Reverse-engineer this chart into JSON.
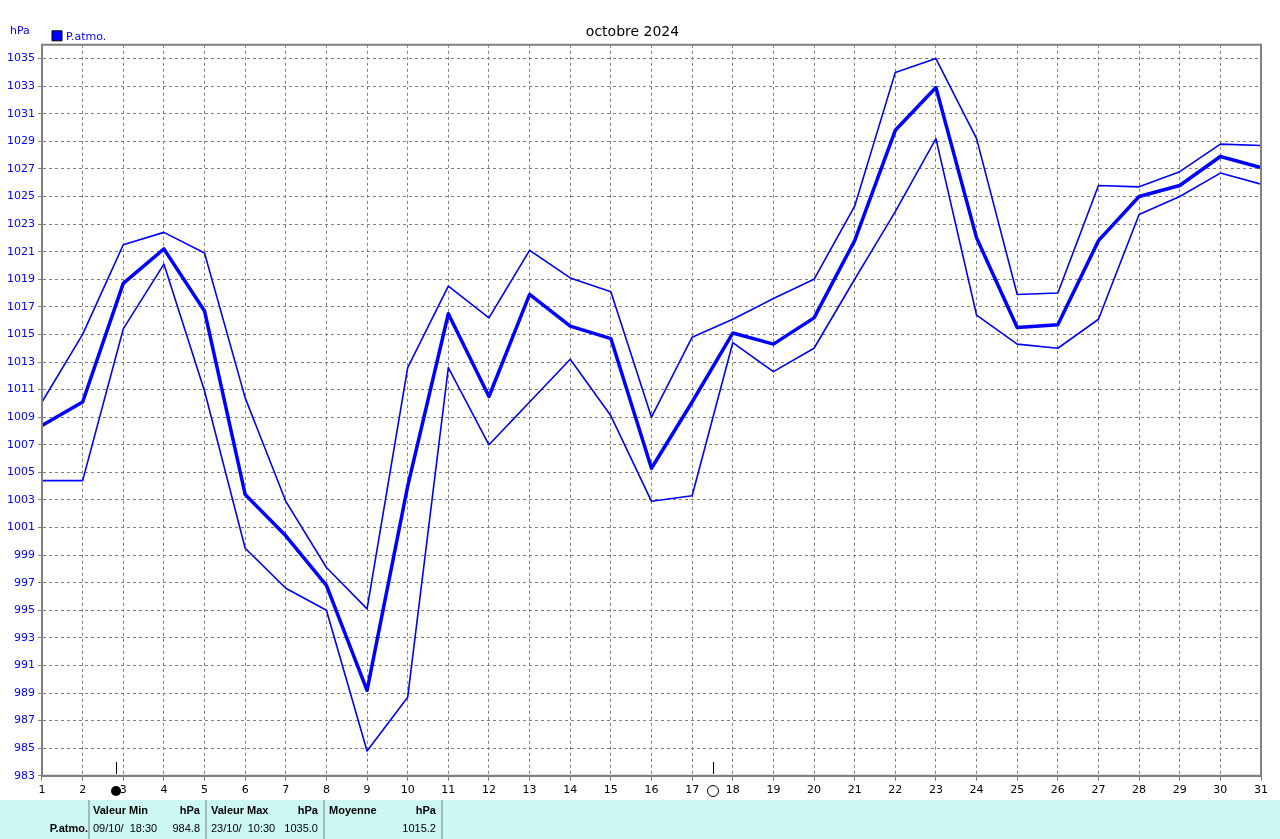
{
  "chart_data": {
    "type": "line",
    "title": "octobre 2024",
    "ylabel": "hPa",
    "x": [
      1,
      2,
      3,
      4,
      5,
      6,
      7,
      8,
      9,
      10,
      11,
      12,
      13,
      14,
      15,
      16,
      17,
      18,
      19,
      20,
      21,
      22,
      23,
      24,
      25,
      26,
      27,
      28,
      29,
      30,
      31
    ],
    "series": [
      {
        "color": "#0000ff",
        "values": [
          1010.1,
          1015.0,
          1021.5,
          1022.4,
          1020.9,
          1010.4,
          1002.9,
          998.1,
          995.1,
          1012.6,
          1018.5,
          1016.2,
          1021.1,
          1019.1,
          1018.1,
          1009.0,
          1014.8,
          1016.1,
          1017.6,
          1019.0,
          1024.3,
          1034.0,
          1035.0,
          1029.2,
          1017.9,
          1018.0,
          1025.8,
          1025.7,
          1026.8,
          1028.8,
          1028.7
        ]
      },
      {
        "name": "P.atmo.",
        "color": "#0000ff",
        "values": [
          1008.4,
          1010.1,
          1018.7,
          1021.2,
          1016.7,
          1003.4,
          1000.4,
          996.8,
          989.2,
          1004.0,
          1016.5,
          1010.5,
          1017.9,
          1015.6,
          1014.7,
          1005.3,
          1010.1,
          1015.1,
          1014.3,
          1016.2,
          1021.8,
          1029.8,
          1032.9,
          1022.0,
          1015.5,
          1015.7,
          1021.8,
          1025.0,
          1025.8,
          1027.9,
          1027.1
        ]
      },
      {
        "color": "#0000ff",
        "values": [
          1004.4,
          1004.4,
          1015.4,
          1020.1,
          1010.9,
          999.5,
          996.6,
          995.0,
          984.8,
          988.7,
          1012.6,
          1007.0,
          1010.1,
          1013.2,
          1009.1,
          1002.9,
          1003.3,
          1014.4,
          1012.3,
          1014.0,
          1019.0,
          1023.9,
          1029.2,
          1016.4,
          1014.3,
          1014.0,
          1016.1,
          1023.7,
          1025.0,
          1026.7,
          1025.9
        ]
      }
    ],
    "xlim": [
      1,
      31
    ],
    "xticks": [
      1,
      2,
      3,
      4,
      5,
      6,
      7,
      8,
      9,
      10,
      11,
      12,
      13,
      14,
      15,
      16,
      17,
      18,
      19,
      20,
      21,
      22,
      23,
      24,
      25,
      26,
      27,
      28,
      29,
      30,
      31
    ],
    "ylim": [
      983,
      1036
    ],
    "yticks": [
      983,
      985,
      987,
      989,
      991,
      993,
      995,
      997,
      999,
      1001,
      1003,
      1005,
      1007,
      1009,
      1011,
      1013,
      1015,
      1017,
      1019,
      1021,
      1023,
      1025,
      1027,
      1029,
      1031,
      1033,
      1035
    ],
    "grid": true,
    "legend": "top left",
    "marker": "none",
    "line_style": "solid",
    "annotations": [
      "P.atmo.",
      "Valeur Min",
      "hPa",
      "09/10/  18:30",
      "984.8",
      "Valeur Max",
      "hPa",
      "23/10/  10:30",
      "1035.0",
      "Moyenne",
      "hPa",
      "1015.2"
    ]
  }
}
